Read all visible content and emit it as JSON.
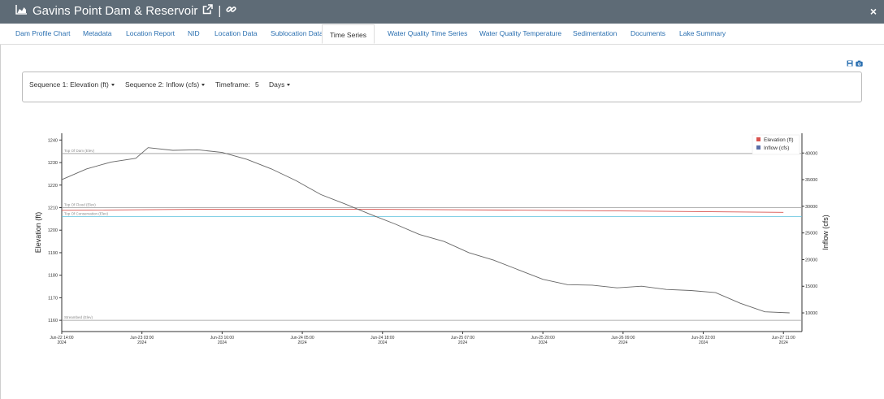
{
  "header": {
    "title": "Gavins Point Dam & Reservoir",
    "separator": "|",
    "chart_icon": "area-chart-icon",
    "external_link_icon": "external-link-icon",
    "link_icon": "link-icon",
    "close_label": "×"
  },
  "tabs": [
    {
      "label": "Dam Profile Chart"
    },
    {
      "label": "Metadata"
    },
    {
      "label": "Location Report"
    },
    {
      "label": "NID"
    },
    {
      "label": "Location Data"
    },
    {
      "label": "Sublocation Data"
    },
    {
      "label": "Time Series",
      "active": true
    },
    {
      "label": "Water Quality Time Series"
    },
    {
      "label": "Water Quality Temperature"
    },
    {
      "label": "Sedimentation"
    },
    {
      "label": "Documents"
    },
    {
      "label": "Lake Summary"
    }
  ],
  "export_icons": [
    "save-icon",
    "camera-icon"
  ],
  "controls": {
    "sequence1": "Sequence 1: Elevation (ft)",
    "sequence2": "Sequence 2: Inflow (cfs)",
    "timeframe_label": "Timeframe:",
    "timeframe_value": "5",
    "timeframe_unit": "Days"
  },
  "colors": {
    "header_bg": "#5e6b76",
    "tab_link": "#2a6fb0",
    "elevation_series": "#d9534f",
    "inflow_series": "#5b6fa8",
    "inflow_line": "#666666",
    "conservation_line": "#5bc0de"
  },
  "chart_data": {
    "type": "line",
    "ylabel": "Elevation (ft)",
    "y2label": "Inflow (cfs)",
    "ylim": [
      1155,
      1243
    ],
    "y_ticks": [
      1160,
      1170,
      1180,
      1190,
      1200,
      1210,
      1220,
      1230,
      1240
    ],
    "y2lim": [
      6500,
      43700
    ],
    "y2_ticks": [
      10000,
      15000,
      20000,
      25000,
      30000,
      35000,
      40000
    ],
    "x_ticks": [
      {
        "date": "Jun-22 14:00",
        "year": "2024"
      },
      {
        "date": "Jun-23 03:00",
        "year": "2024"
      },
      {
        "date": "Jun-23 16:00",
        "year": "2024"
      },
      {
        "date": "Jun-24 05:00",
        "year": "2024"
      },
      {
        "date": "Jun-24 18:00",
        "year": "2024"
      },
      {
        "date": "Jun-25 07:00",
        "year": "2024"
      },
      {
        "date": "Jun-25 20:00",
        "year": "2024"
      },
      {
        "date": "Jun-26 09:00",
        "year": "2024"
      },
      {
        "date": "Jun-26 22:00",
        "year": "2024"
      },
      {
        "date": "Jun-27 11:00",
        "year": "2024"
      }
    ],
    "xlim": [
      "Jun-22 14:00",
      "Jun-27 14:00"
    ],
    "reference_lines": [
      {
        "label": "Top Of Dam (Elev)",
        "value": 1234
      },
      {
        "label": "Top Of Flood (Elev)",
        "value": 1210
      },
      {
        "label": "Top Of Conservation (Elev)",
        "value": 1206
      },
      {
        "label": "Streambed (Elev)",
        "value": 1160
      }
    ],
    "legend": [
      {
        "name": "Elevation (ft)"
      },
      {
        "name": "Inflow (cfs)"
      }
    ],
    "legend_position": "top-right",
    "series": [
      {
        "name": "Elevation (ft)",
        "x": [
          "Jun-22 14:00",
          "Jun-23 14:00",
          "Jun-24 14:00",
          "Jun-25 14:00",
          "Jun-26 14:00",
          "Jun-27 11:00"
        ],
        "values": [
          1208.8,
          1209.3,
          1209.3,
          1208.9,
          1208.4,
          1207.9
        ]
      },
      {
        "name": "Inflow (cfs)",
        "x": [
          "Jun-22 14:00",
          "Jun-22 18:00",
          "Jun-22 22:00",
          "Jun-23 02:00",
          "Jun-23 04:00",
          "Jun-23 08:00",
          "Jun-23 12:00",
          "Jun-23 16:00",
          "Jun-23 20:00",
          "Jun-24 00:00",
          "Jun-24 04:00",
          "Jun-24 08:00",
          "Jun-24 12:00",
          "Jun-24 16:00",
          "Jun-24 20:00",
          "Jun-25 00:00",
          "Jun-25 04:00",
          "Jun-25 08:00",
          "Jun-25 12:00",
          "Jun-25 16:00",
          "Jun-25 20:00",
          "Jun-26 00:00",
          "Jun-26 04:00",
          "Jun-26 08:00",
          "Jun-26 12:00",
          "Jun-26 16:00",
          "Jun-26 20:00",
          "Jun-27 00:00",
          "Jun-27 04:00",
          "Jun-27 08:00",
          "Jun-27 12:00"
        ],
        "values": [
          35000,
          37000,
          38300,
          39000,
          41000,
          40500,
          40600,
          40100,
          38800,
          37000,
          34800,
          32200,
          30400,
          28500,
          26700,
          24700,
          23400,
          21300,
          19900,
          18100,
          16300,
          15300,
          15200,
          14700,
          15000,
          14400,
          14200,
          13800,
          11800,
          10200,
          10000
        ]
      }
    ]
  }
}
